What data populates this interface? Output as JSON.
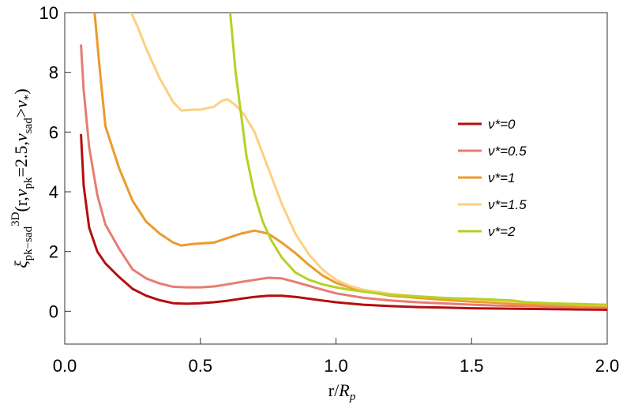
{
  "chart_data": {
    "type": "line",
    "title": "",
    "xlabel": "r/R_p",
    "ylabel": "ξ_pk−sad^3D(r, ν_pk=2.5, ν_sad>ν_*)",
    "xlim": [
      0,
      2.0
    ],
    "ylim": [
      -1.1,
      10
    ],
    "x_ticks": [
      "0.0",
      "0.5",
      "1.0",
      "1.5",
      "2.0"
    ],
    "x_tick_values": [
      0,
      0.5,
      1.0,
      1.5,
      2.0
    ],
    "y_ticks": [
      "0",
      "2",
      "4",
      "6",
      "8",
      "10"
    ],
    "y_tick_values": [
      0,
      2,
      4,
      6,
      8,
      10
    ],
    "grid": false,
    "legend_position": "right",
    "series": [
      {
        "name": "ν*=0",
        "color": "#b40e0e",
        "points": [
          [
            0.06,
            5.9
          ],
          [
            0.07,
            4.2
          ],
          [
            0.09,
            2.8
          ],
          [
            0.12,
            2.0
          ],
          [
            0.15,
            1.6
          ],
          [
            0.2,
            1.15
          ],
          [
            0.25,
            0.75
          ],
          [
            0.3,
            0.52
          ],
          [
            0.35,
            0.37
          ],
          [
            0.4,
            0.27
          ],
          [
            0.45,
            0.25
          ],
          [
            0.5,
            0.27
          ],
          [
            0.55,
            0.3
          ],
          [
            0.6,
            0.35
          ],
          [
            0.65,
            0.42
          ],
          [
            0.7,
            0.48
          ],
          [
            0.75,
            0.52
          ],
          [
            0.8,
            0.52
          ],
          [
            0.85,
            0.48
          ],
          [
            0.9,
            0.42
          ],
          [
            0.95,
            0.36
          ],
          [
            1.0,
            0.3
          ],
          [
            1.1,
            0.22
          ],
          [
            1.2,
            0.17
          ],
          [
            1.3,
            0.14
          ],
          [
            1.4,
            0.12
          ],
          [
            1.5,
            0.1
          ],
          [
            1.6,
            0.09
          ],
          [
            1.7,
            0.08
          ],
          [
            1.8,
            0.07
          ],
          [
            1.9,
            0.06
          ],
          [
            2.0,
            0.05
          ]
        ]
      },
      {
        "name": "ν*=0.5",
        "color": "#e77d73",
        "points": [
          [
            0.06,
            8.9
          ],
          [
            0.07,
            7.4
          ],
          [
            0.09,
            5.5
          ],
          [
            0.12,
            3.9
          ],
          [
            0.15,
            2.9
          ],
          [
            0.2,
            2.1
          ],
          [
            0.25,
            1.4
          ],
          [
            0.3,
            1.1
          ],
          [
            0.35,
            0.93
          ],
          [
            0.4,
            0.82
          ],
          [
            0.45,
            0.8
          ],
          [
            0.5,
            0.8
          ],
          [
            0.55,
            0.83
          ],
          [
            0.6,
            0.9
          ],
          [
            0.65,
            0.98
          ],
          [
            0.7,
            1.05
          ],
          [
            0.75,
            1.12
          ],
          [
            0.8,
            1.1
          ],
          [
            0.85,
            0.98
          ],
          [
            0.9,
            0.85
          ],
          [
            0.95,
            0.72
          ],
          [
            1.0,
            0.6
          ],
          [
            1.1,
            0.45
          ],
          [
            1.2,
            0.36
          ],
          [
            1.3,
            0.3
          ],
          [
            1.4,
            0.26
          ],
          [
            1.5,
            0.22
          ],
          [
            1.6,
            0.19
          ],
          [
            1.7,
            0.17
          ],
          [
            1.8,
            0.15
          ],
          [
            1.9,
            0.13
          ],
          [
            2.0,
            0.12
          ]
        ]
      },
      {
        "name": "ν*=1",
        "color": "#eb9b2b",
        "points": [
          [
            0.11,
            10.0
          ],
          [
            0.13,
            8.0
          ],
          [
            0.15,
            6.2
          ],
          [
            0.2,
            4.8
          ],
          [
            0.25,
            3.7
          ],
          [
            0.3,
            3.0
          ],
          [
            0.35,
            2.6
          ],
          [
            0.4,
            2.3
          ],
          [
            0.43,
            2.2
          ],
          [
            0.47,
            2.25
          ],
          [
            0.5,
            2.27
          ],
          [
            0.55,
            2.3
          ],
          [
            0.6,
            2.45
          ],
          [
            0.65,
            2.6
          ],
          [
            0.7,
            2.7
          ],
          [
            0.75,
            2.6
          ],
          [
            0.8,
            2.3
          ],
          [
            0.85,
            1.95
          ],
          [
            0.9,
            1.55
          ],
          [
            0.95,
            1.2
          ],
          [
            1.0,
            0.95
          ],
          [
            1.05,
            0.8
          ],
          [
            1.1,
            0.68
          ],
          [
            1.2,
            0.52
          ],
          [
            1.3,
            0.45
          ],
          [
            1.4,
            0.38
          ],
          [
            1.5,
            0.32
          ],
          [
            1.6,
            0.28
          ],
          [
            1.7,
            0.24
          ],
          [
            1.8,
            0.21
          ],
          [
            1.9,
            0.18
          ],
          [
            2.0,
            0.16
          ]
        ]
      },
      {
        "name": "ν*=1.5",
        "color": "#fdd080",
        "points": [
          [
            0.245,
            10.0
          ],
          [
            0.27,
            9.5
          ],
          [
            0.3,
            8.8
          ],
          [
            0.35,
            7.8
          ],
          [
            0.4,
            7.0
          ],
          [
            0.43,
            6.72
          ],
          [
            0.47,
            6.75
          ],
          [
            0.5,
            6.75
          ],
          [
            0.55,
            6.85
          ],
          [
            0.58,
            7.05
          ],
          [
            0.6,
            7.1
          ],
          [
            0.63,
            6.9
          ],
          [
            0.66,
            6.6
          ],
          [
            0.7,
            6.0
          ],
          [
            0.75,
            4.8
          ],
          [
            0.8,
            3.6
          ],
          [
            0.85,
            2.6
          ],
          [
            0.9,
            1.9
          ],
          [
            0.95,
            1.4
          ],
          [
            1.0,
            1.05
          ],
          [
            1.05,
            0.85
          ],
          [
            1.1,
            0.72
          ],
          [
            1.2,
            0.58
          ],
          [
            1.3,
            0.5
          ],
          [
            1.4,
            0.45
          ],
          [
            1.5,
            0.4
          ],
          [
            1.6,
            0.34
          ],
          [
            1.7,
            0.3
          ],
          [
            1.8,
            0.26
          ],
          [
            1.9,
            0.23
          ],
          [
            2.0,
            0.2
          ]
        ]
      },
      {
        "name": "ν*=2",
        "color": "#b5d125",
        "points": [
          [
            0.61,
            10.0
          ],
          [
            0.62,
            9.0
          ],
          [
            0.63,
            8.0
          ],
          [
            0.65,
            6.6
          ],
          [
            0.67,
            5.2
          ],
          [
            0.7,
            3.9
          ],
          [
            0.73,
            3.0
          ],
          [
            0.76,
            2.4
          ],
          [
            0.8,
            1.8
          ],
          [
            0.85,
            1.3
          ],
          [
            0.9,
            1.05
          ],
          [
            0.95,
            0.9
          ],
          [
            1.0,
            0.8
          ],
          [
            1.05,
            0.72
          ],
          [
            1.1,
            0.66
          ],
          [
            1.15,
            0.6
          ],
          [
            1.2,
            0.55
          ],
          [
            1.25,
            0.52
          ],
          [
            1.3,
            0.5
          ],
          [
            1.35,
            0.47
          ],
          [
            1.4,
            0.44
          ],
          [
            1.45,
            0.43
          ],
          [
            1.5,
            0.42
          ],
          [
            1.55,
            0.4
          ],
          [
            1.6,
            0.38
          ],
          [
            1.65,
            0.36
          ],
          [
            1.7,
            0.3
          ],
          [
            1.75,
            0.28
          ],
          [
            1.8,
            0.26
          ],
          [
            1.85,
            0.25
          ],
          [
            1.9,
            0.24
          ],
          [
            1.95,
            0.23
          ],
          [
            2.0,
            0.22
          ]
        ]
      }
    ]
  },
  "legend": {
    "items": [
      "ν*=0",
      "ν*=0.5",
      "ν*=1",
      "ν*=1.5",
      "ν*=2"
    ]
  }
}
